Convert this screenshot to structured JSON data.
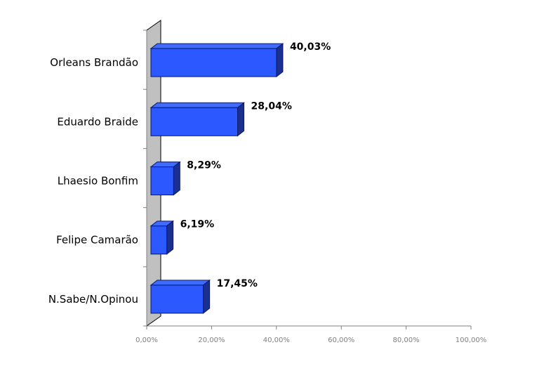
{
  "chart_data": {
    "type": "bar",
    "orientation": "horizontal",
    "three_d": true,
    "categories": [
      "Orleans Brandão",
      "Eduardo Braide",
      "Lhaesio Bonfim",
      "Felipe Camarão",
      "N.Sabe/N.Opinou"
    ],
    "values": [
      40.03,
      28.04,
      8.29,
      6.19,
      17.45
    ],
    "value_labels": [
      "40,03%",
      "28,04%",
      "8,29%",
      "6,19%",
      "17,45%"
    ],
    "title": "",
    "xlabel": "",
    "ylabel": "",
    "xlim": [
      0,
      100
    ],
    "x_ticks": [
      0,
      20,
      40,
      60,
      80,
      100
    ],
    "x_tick_labels": [
      "0,00%",
      "20,00%",
      "40,00%",
      "60,00%",
      "80,00%",
      "100,00%"
    ],
    "grid": false,
    "legend": "none",
    "colors": {
      "bar_front": "#2b59ff",
      "bar_top": "#3f6bff",
      "bar_side": "#1a2f8f",
      "bar_outline": "#0b1a66",
      "wall": "#c0c0c0",
      "axis": "#808080"
    }
  }
}
